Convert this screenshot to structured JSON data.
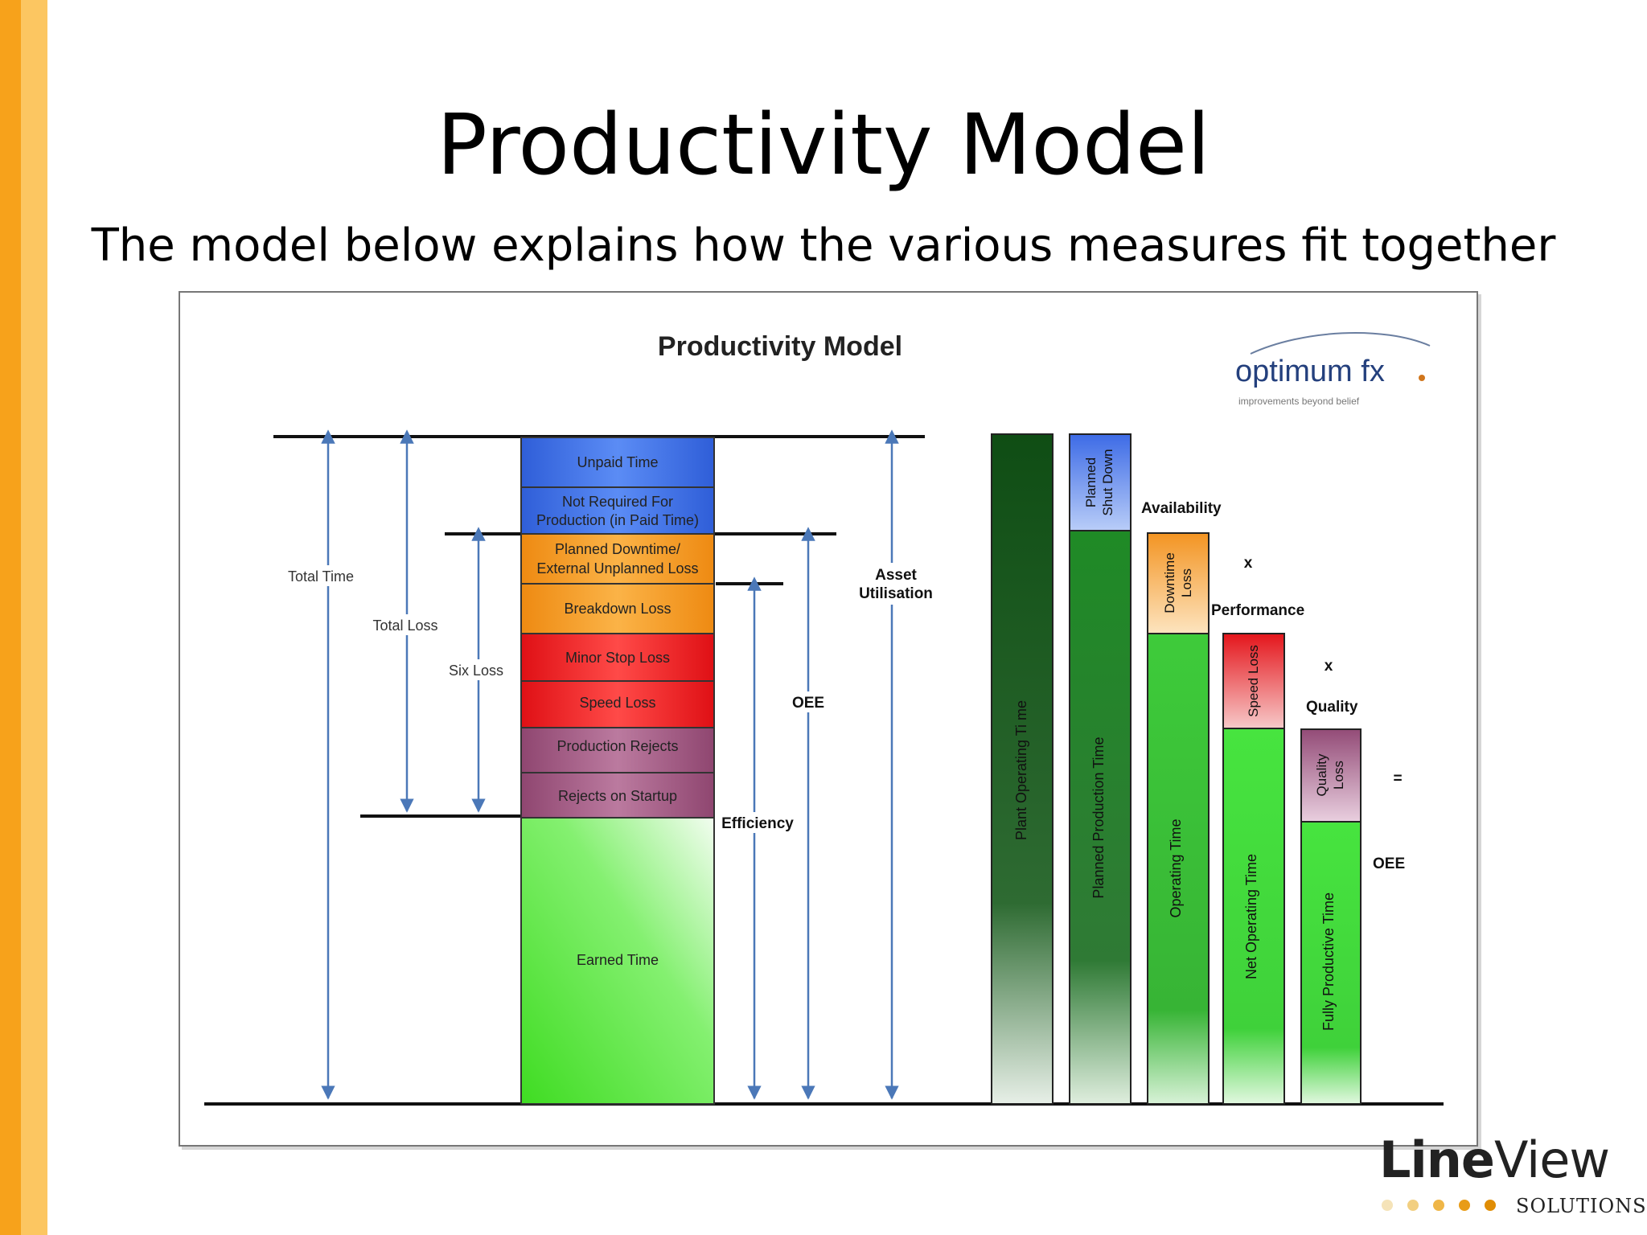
{
  "slide": {
    "title": "Productivity Model",
    "subtitle": "The model below explains how the various measures fit together"
  },
  "diagram": {
    "title": "Productivity Model",
    "logo": {
      "text": "optimum fx",
      "tagline": "improvements beyond belief"
    },
    "stack_segments": [
      {
        "label": "Unpaid Time",
        "color": "#3f6ee6"
      },
      {
        "label": "Not Required For",
        "label2": "Production (in Paid Time)",
        "color": "#3f6ee6"
      },
      {
        "label": "Planned Downtime/",
        "label2": "External Unplanned Loss",
        "color": "#f39a22"
      },
      {
        "label": "Breakdown Loss",
        "color": "#f39a22"
      },
      {
        "label": "Minor Stop Loss",
        "color": "#e8171b"
      },
      {
        "label": "Speed Loss",
        "color": "#e8171b"
      },
      {
        "label": "Production Rejects",
        "color": "#a25b82"
      },
      {
        "label": "Rejects on Startup",
        "color": "#a25b82"
      },
      {
        "label": "Earned Time",
        "color": "#4be63a"
      }
    ],
    "measures": {
      "total_time": "Total Time",
      "total_loss": "Total Loss",
      "six_loss": "Six Loss",
      "oee": "OEE",
      "efficiency": "Efficiency",
      "asset_utilisation_1": "Asset",
      "asset_utilisation_2": "Utilisation"
    },
    "oee_columns": {
      "plant_operating_time": "Plant Operating Ti me",
      "planned_shut_down_1": "Planned",
      "planned_shut_down_2": "Shut Down",
      "planned_production_time": "Planned Production Time",
      "downtime_loss_1": "Downtime",
      "downtime_loss_2": "Loss",
      "operating_time": "Operating Time",
      "speed_loss": "Speed Loss",
      "net_operating_time": "Net Operating Time",
      "quality_loss_1": "Quality",
      "quality_loss_2": "Loss",
      "fully_productive_time": "Fully Productive Time"
    },
    "factors": {
      "availability": "Availability",
      "performance": "Performance",
      "quality": "Quality",
      "times_1": "x",
      "times_2": "x",
      "equals": "=",
      "result": "OEE"
    }
  },
  "brand": {
    "word_bold": "Line",
    "word_light": "View",
    "sub": "SOLUTIONS",
    "dot_colors": [
      "#f5e3b8",
      "#f2cf80",
      "#efb647",
      "#e89c17",
      "#e08d05"
    ]
  }
}
